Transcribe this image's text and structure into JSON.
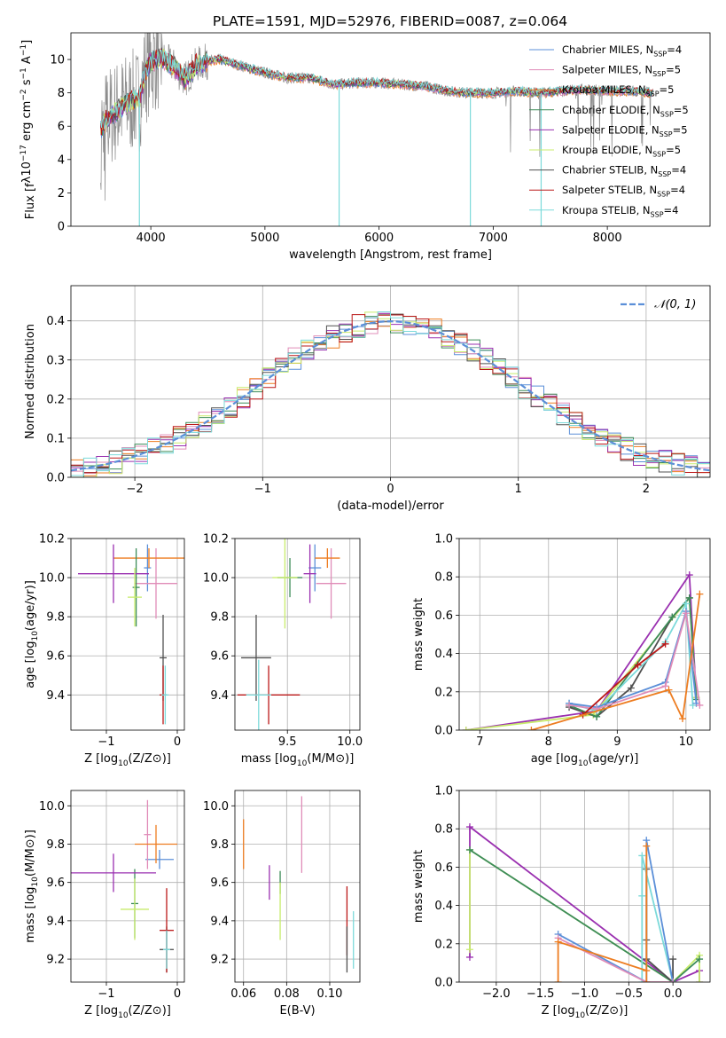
{
  "colors": {
    "Chabrier MILES": "#5b8fd8",
    "Salpeter MILES": "#e08cb8",
    "Kroupa MILES": "#ed7d21",
    "Chabrier ELODIE": "#3d8c59",
    "Salpeter ELODIE": "#9a30b0",
    "Kroupa ELODIE": "#c8ec6c",
    "Chabrier STELIB": "#505050",
    "Salpeter STELIB": "#bb1818",
    "Kroupa STELIB": "#7cdada",
    "spectrum": "#8c8c8c",
    "gaussian": "#5b8fd8"
  },
  "chart_data": [
    {
      "id": "spectrum",
      "type": "line",
      "title": "PLATE=1591, MJD=52976, FIBERID=0087, z=0.064",
      "xlabel": "wavelength [Angstrom, rest frame]",
      "ylabel": "Flux [f_λ10^-17 erg cm^-2 s^-1 A^-1]",
      "xlim": [
        3300,
        8900
      ],
      "ylim": [
        0,
        11.6
      ],
      "xticks": [
        4000,
        5000,
        6000,
        7000,
        8000
      ],
      "yticks": [
        0,
        2,
        4,
        6,
        8,
        10
      ],
      "grid": false,
      "legend_position": "top-right",
      "legend": [
        {
          "model": "Chabrier MILES",
          "label": "Chabrier MILES, N_SSP=4"
        },
        {
          "model": "Salpeter MILES",
          "label": "Salpeter MILES, N_SSP=5"
        },
        {
          "model": "Kroupa MILES",
          "label": "Kroupa MILES, N_SSP=5"
        },
        {
          "model": "Chabrier ELODIE",
          "label": "Chabrier ELODIE, N_SSP=5"
        },
        {
          "model": "Salpeter ELODIE",
          "label": "Salpeter ELODIE, N_SSP=5"
        },
        {
          "model": "Kroupa ELODIE",
          "label": "Kroupa ELODIE, N_SSP=5"
        },
        {
          "model": "Chabrier STELIB",
          "label": "Chabrier STELIB, N_SSP=4"
        },
        {
          "model": "Salpeter STELIB",
          "label": "Salpeter STELIB, N_SSP=4"
        },
        {
          "model": "Kroupa STELIB",
          "label": "Kroupa STELIB, N_SSP=4"
        }
      ],
      "continuum": {
        "x": [
          3560,
          3620,
          3700,
          3800,
          3900,
          3950,
          4000,
          4100,
          4200,
          4300,
          4400,
          4500,
          4600,
          4800,
          5000,
          5200,
          5400,
          5600,
          5800,
          6000,
          6200,
          6400,
          6600,
          6800,
          7000,
          7200,
          7400,
          7600,
          7800,
          8000,
          8200,
          8400
        ],
        "y": [
          5.8,
          6.5,
          6.9,
          7.4,
          7.6,
          9.2,
          9.9,
          10.1,
          9.6,
          8.8,
          9.7,
          9.9,
          10.0,
          9.6,
          9.2,
          8.9,
          8.9,
          8.5,
          8.6,
          8.6,
          8.5,
          8.4,
          8.1,
          8.0,
          8.0,
          8.1,
          8.0,
          8.1,
          8.2,
          8.1,
          8.1,
          8.0
        ]
      },
      "drops": [
        {
          "x": 3900,
          "y": 0.0
        },
        {
          "x": 5650,
          "y": 0.0
        },
        {
          "x": 6800,
          "y": 0.0
        },
        {
          "x": 7420,
          "y": 0.0
        }
      ]
    },
    {
      "id": "residuals",
      "type": "bar",
      "xlabel": "(data-model)/error",
      "ylabel": "Normed distribution",
      "xlim": [
        -2.5,
        2.5
      ],
      "ylim": [
        0,
        0.49
      ],
      "xticks": [
        -2,
        -1,
        0,
        1,
        2
      ],
      "yticks": [
        0.0,
        0.1,
        0.2,
        0.3,
        0.4
      ],
      "grid": true,
      "legend_position": "top-right",
      "legend": [
        {
          "label": "𝒩(0, 1)"
        }
      ],
      "bin_width": 0.1,
      "bin_start": -2.5,
      "bin_count": 50
    },
    {
      "id": "age-vs-Z",
      "type": "scatter",
      "xlabel": "Z [log10(Z/Z⊙)]",
      "ylabel": "age  [log10(age/yr)]",
      "xlim": [
        -1.5,
        0.1
      ],
      "ylim": [
        9.22,
        10.2
      ],
      "xticks": [
        -1,
        0
      ],
      "yticks": [
        9.4,
        9.6,
        9.8,
        10.0,
        10.2
      ],
      "grid": true,
      "points": [
        {
          "model": "Chabrier MILES",
          "x": -0.42,
          "y": 10.05,
          "xerr": 0.05,
          "yerr": 0.12
        },
        {
          "model": "Salpeter MILES",
          "x": -0.3,
          "y": 9.97,
          "xerr": 0.3,
          "yerr": 0.18
        },
        {
          "model": "Kroupa MILES",
          "x": -0.4,
          "y": 10.1,
          "xerr": 0.5,
          "yerr": 0.05
        },
        {
          "model": "Chabrier ELODIE",
          "x": -0.58,
          "y": 9.95,
          "xerr": 0.05,
          "yerr": 0.2
        },
        {
          "model": "Salpeter ELODIE",
          "x": -0.9,
          "y": 10.02,
          "xerr": 0.5,
          "yerr": 0.15
        },
        {
          "model": "Kroupa ELODIE",
          "x": -0.6,
          "y": 9.9,
          "xerr": 0.1,
          "yerr": 0.15
        },
        {
          "model": "Chabrier STELIB",
          "x": -0.2,
          "y": 9.59,
          "xerr": 0.05,
          "yerr": 0.22
        },
        {
          "model": "Salpeter STELIB",
          "x": -0.2,
          "y": 9.4,
          "xerr": 0.05,
          "yerr": 0.15
        },
        {
          "model": "Kroupa STELIB",
          "x": -0.17,
          "y": 9.4,
          "xerr": 0.05,
          "yerr": 0.15
        }
      ]
    },
    {
      "id": "age-vs-mass",
      "type": "scatter",
      "xlabel": "mass [log10(M/M⊙)]",
      "ylabel": "",
      "xlim": [
        9.08,
        10.08
      ],
      "ylim": [
        9.22,
        10.2
      ],
      "xticks": [
        9.5,
        10.0
      ],
      "yticks": [
        9.4,
        9.6,
        9.8,
        10.0,
        10.2
      ],
      "grid": true,
      "points": [
        {
          "model": "Chabrier MILES",
          "x": 9.72,
          "y": 10.05,
          "xerr": 0.05,
          "yerr": 0.12
        },
        {
          "model": "Salpeter MILES",
          "x": 9.85,
          "y": 9.97,
          "xerr": 0.12,
          "yerr": 0.18
        },
        {
          "model": "Kroupa MILES",
          "x": 9.82,
          "y": 10.1,
          "xerr": 0.1,
          "yerr": 0.05
        },
        {
          "model": "Chabrier ELODIE",
          "x": 9.52,
          "y": 10.0,
          "xerr": 0.1,
          "yerr": 0.1
        },
        {
          "model": "Salpeter ELODIE",
          "x": 9.68,
          "y": 10.02,
          "xerr": 0.05,
          "yerr": 0.15
        },
        {
          "model": "Kroupa ELODIE",
          "x": 9.48,
          "y": 10.0,
          "xerr": 0.1,
          "yerr": 0.26
        },
        {
          "model": "Chabrier STELIB",
          "x": 9.25,
          "y": 9.59,
          "xerr": 0.12,
          "yerr": 0.22
        },
        {
          "model": "Salpeter STELIB",
          "x": 9.35,
          "y": 9.4,
          "xerr": 0.25,
          "yerr": 0.15
        },
        {
          "model": "Kroupa STELIB",
          "x": 9.27,
          "y": 9.4,
          "xerr": 0.1,
          "yerr": 0.18
        }
      ]
    },
    {
      "id": "weights-vs-age",
      "type": "line",
      "xlabel": "age  [log10(age/yr)]",
      "ylabel": "mass weight",
      "xlim": [
        6.7,
        10.35
      ],
      "ylim": [
        0,
        1.0
      ],
      "xticks": [
        7,
        8,
        9,
        10
      ],
      "yticks": [
        0.0,
        0.2,
        0.4,
        0.6,
        0.8,
        1.0
      ],
      "grid": true,
      "series": [
        {
          "model": "Salpeter ELODIE",
          "x": [
            6.8,
            8.7,
            10.05,
            10.15
          ],
          "y": [
            0.0,
            0.1,
            0.81,
            0.17
          ]
        },
        {
          "model": "Kroupa ELODIE",
          "x": [
            6.8,
            8.65,
            10.05,
            10.15
          ],
          "y": [
            0.0,
            0.08,
            0.69,
            0.17
          ]
        },
        {
          "model": "Chabrier STELIB",
          "x": [
            8.3,
            8.7,
            9.2,
            9.8,
            10.05
          ],
          "y": [
            0.12,
            0.07,
            0.22,
            0.59,
            0.69
          ]
        },
        {
          "model": "Chabrier ELODIE",
          "x": [
            8.3,
            8.7,
            9.8,
            10.05,
            10.15
          ],
          "y": [
            0.13,
            0.07,
            0.59,
            0.69,
            0.16
          ]
        },
        {
          "model": "Kroupa STELIB",
          "x": [
            8.3,
            8.7,
            9.7,
            10.0,
            10.1
          ],
          "y": [
            0.14,
            0.1,
            0.46,
            0.66,
            0.13
          ]
        },
        {
          "model": "Chabrier MILES",
          "x": [
            8.3,
            8.7,
            9.7,
            10.0,
            10.15
          ],
          "y": [
            0.14,
            0.12,
            0.25,
            0.62,
            0.14
          ]
        },
        {
          "model": "Salpeter MILES",
          "x": [
            8.3,
            8.7,
            9.7,
            10.0,
            10.2
          ],
          "y": [
            0.13,
            0.11,
            0.23,
            0.61,
            0.13
          ]
        },
        {
          "model": "Salpeter STELIB",
          "x": [
            8.5,
            9.3,
            9.7
          ],
          "y": [
            0.08,
            0.34,
            0.45
          ]
        },
        {
          "model": "Kroupa MILES",
          "x": [
            7.75,
            9.75,
            9.95,
            10.2
          ],
          "y": [
            0.0,
            0.21,
            0.06,
            0.71
          ]
        }
      ]
    },
    {
      "id": "mass-vs-Z",
      "type": "scatter",
      "xlabel": "Z [log10(Z/Z⊙)]",
      "ylabel": "mass [log10(M/M⊙)]",
      "xlim": [
        -1.5,
        0.1
      ],
      "ylim": [
        9.08,
        10.08
      ],
      "xticks": [
        -1,
        0
      ],
      "yticks": [
        9.2,
        9.4,
        9.6,
        9.8,
        10.0
      ],
      "grid": true,
      "points": [
        {
          "model": "Chabrier MILES",
          "x": -0.25,
          "y": 9.72,
          "xerr": 0.2,
          "yerr": 0.05
        },
        {
          "model": "Salpeter MILES",
          "x": -0.42,
          "y": 9.85,
          "xerr": 0.05,
          "yerr": 0.18
        },
        {
          "model": "Kroupa MILES",
          "x": -0.3,
          "y": 9.8,
          "xerr": 0.3,
          "yerr": 0.1
        },
        {
          "model": "Chabrier ELODIE",
          "x": -0.6,
          "y": 9.49,
          "xerr": 0.05,
          "yerr": 0.18
        },
        {
          "model": "Salpeter ELODIE",
          "x": -0.9,
          "y": 9.65,
          "xerr": 0.6,
          "yerr": 0.1
        },
        {
          "model": "Kroupa ELODIE",
          "x": -0.6,
          "y": 9.46,
          "xerr": 0.2,
          "yerr": 0.16
        },
        {
          "model": "Chabrier STELIB",
          "x": -0.15,
          "y": 9.25,
          "xerr": 0.1,
          "yerr": 0.12
        },
        {
          "model": "Salpeter STELIB",
          "x": -0.15,
          "y": 9.35,
          "xerr": 0.1,
          "yerr": 0.22
        },
        {
          "model": "Kroupa STELIB",
          "x": -0.15,
          "y": 9.25,
          "xerr": 0.05,
          "yerr": 0.1
        }
      ]
    },
    {
      "id": "mass-vs-EBV",
      "type": "scatter",
      "xlabel": "E(B-V)",
      "ylabel": "",
      "xlim": [
        0.056,
        0.114
      ],
      "ylim": [
        9.08,
        10.08
      ],
      "xticks": [
        0.06,
        0.08,
        0.1
      ],
      "yticks": [
        9.2,
        9.4,
        9.6,
        9.8,
        10.0
      ],
      "grid": true,
      "points": [
        {
          "model": "Kroupa MILES",
          "x": 0.06,
          "y": 9.8,
          "xerr": 0.0,
          "yerr": 0.13
        },
        {
          "model": "Salpeter ELODIE",
          "x": 0.072,
          "y": 9.6,
          "xerr": 0.0,
          "yerr": 0.09
        },
        {
          "model": "Chabrier ELODIE",
          "x": 0.077,
          "y": 9.6,
          "xerr": 0.0,
          "yerr": 0.06
        },
        {
          "model": "Kroupa ELODIE",
          "x": 0.077,
          "y": 9.45,
          "xerr": 0.0,
          "yerr": 0.15
        },
        {
          "model": "Salpeter MILES",
          "x": 0.087,
          "y": 9.85,
          "xerr": 0.0,
          "yerr": 0.2
        },
        {
          "model": "Salpeter STELIB",
          "x": 0.108,
          "y": 9.4,
          "xerr": 0.0,
          "yerr": 0.18
        },
        {
          "model": "Chabrier STELIB",
          "x": 0.108,
          "y": 9.25,
          "xerr": 0.0,
          "yerr": 0.12
        },
        {
          "model": "Kroupa STELIB",
          "x": 0.111,
          "y": 9.3,
          "xerr": 0.0,
          "yerr": 0.15
        }
      ]
    },
    {
      "id": "weights-vs-Z",
      "type": "line",
      "xlabel": "Z [log10(Z/Z⊙)]",
      "ylabel": "mass weight",
      "xlim": [
        -2.42,
        0.42
      ],
      "ylim": [
        0,
        1.0
      ],
      "xticks": [
        -2.0,
        -1.5,
        -1.0,
        -0.5,
        0.0
      ],
      "yticks": [
        0.0,
        0.2,
        0.4,
        0.6,
        0.8,
        1.0
      ],
      "grid": true,
      "series": [
        {
          "model": "Salpeter ELODIE",
          "x": [
            -2.3,
            -2.3,
            0.0,
            0.3,
            0.3
          ],
          "y": [
            0.13,
            0.81,
            0.0,
            0.06,
            0.0
          ]
        },
        {
          "model": "Kroupa ELODIE",
          "x": [
            -2.3,
            -2.3,
            0.0,
            0.3,
            0.3
          ],
          "y": [
            0.17,
            0.69,
            0.0,
            0.14,
            0.0
          ]
        },
        {
          "model": "Chabrier ELODIE",
          "x": [
            -2.3,
            0.0,
            0.3
          ],
          "y": [
            0.69,
            0.0,
            0.12
          ]
        },
        {
          "model": "Chabrier STELIB",
          "x": [
            -0.3,
            -0.3,
            -0.3,
            0.0,
            0.0
          ],
          "y": [
            0.22,
            0.59,
            0.12,
            0.0,
            0.12
          ]
        },
        {
          "model": "Kroupa STELIB",
          "x": [
            -0.35,
            -0.35,
            -0.35,
            0.0
          ],
          "y": [
            0.0,
            0.45,
            0.66,
            0.0
          ]
        },
        {
          "model": "Chabrier MILES",
          "x": [
            -1.3,
            -0.3,
            -0.3,
            0.0
          ],
          "y": [
            0.25,
            0.0,
            0.74,
            0.0
          ]
        },
        {
          "model": "Salpeter MILES",
          "x": [
            -1.3,
            -0.3,
            0.0
          ],
          "y": [
            0.23,
            0.0,
            0.0
          ]
        },
        {
          "model": "Kroupa MILES",
          "x": [
            -1.3,
            -1.3,
            -0.3,
            -0.3,
            -0.3
          ],
          "y": [
            0.0,
            0.21,
            0.06,
            0.71,
            0.0
          ]
        }
      ]
    }
  ]
}
